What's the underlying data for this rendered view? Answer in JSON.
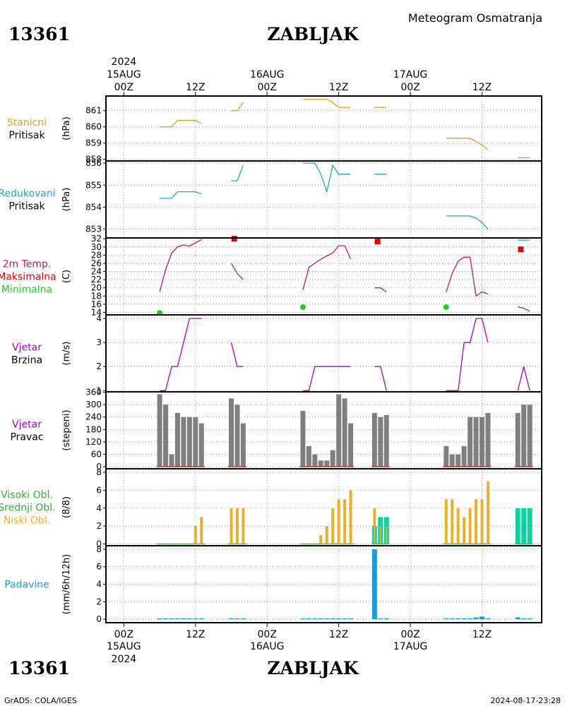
{
  "header": {
    "station_id": "13361",
    "station_name": "ZABLJAK",
    "product": "Meteogram Osmatranja",
    "footer_left": "GrADS: COLA/IGES",
    "footer_right": "2024-08-17-23:28"
  },
  "time_axis": {
    "year": "2024",
    "day_labels": [
      "15AUG",
      "16AUG",
      "17AUG"
    ],
    "hour_labels": [
      "00Z",
      "12Z",
      "00Z",
      "12Z",
      "00Z",
      "12Z"
    ],
    "tick_hours": [
      0,
      12,
      24,
      36,
      48,
      60
    ],
    "range_hours": [
      -3,
      70
    ]
  },
  "colors": {
    "pressure": "#d4a02a",
    "reduced_pressure": "#1aa8c8",
    "temp_line": "#c0186a",
    "tmax": "#e00000",
    "tmin": "#22cc22",
    "wind_speed": "#aa00cc",
    "wind_dir_bar": "#7f7f7f",
    "wind_dir_base": "#e03030",
    "cloud_low": "#e8b030",
    "cloud_mid": "#10d0a0",
    "cloud_high": "#3aaa3a",
    "precip": "#10a0e0"
  },
  "chart_data": [
    {
      "type": "line",
      "id": "station_pressure",
      "label_lines": [
        "Stanicni",
        "Pritisak"
      ],
      "ylabel": "(hPa)",
      "ylim": [
        857.9,
        861.9
      ],
      "yticks": [
        858,
        859,
        860,
        861
      ],
      "series": [
        {
          "x": [
            6,
            8,
            9,
            10,
            11,
            12,
            13
          ],
          "y": [
            860.0,
            860.0,
            860.4,
            860.4,
            860.4,
            860.4,
            860.2
          ]
        },
        {
          "x": [
            18,
            19,
            20
          ],
          "y": [
            861.0,
            861.0,
            861.5
          ]
        },
        {
          "x": [
            30,
            31,
            32,
            33,
            34,
            35,
            36,
            37,
            38
          ],
          "y": [
            861.7,
            861.7,
            861.7,
            861.7,
            861.7,
            861.5,
            861.2,
            861.2,
            861.2
          ]
        },
        {
          "x": [
            42,
            43,
            44
          ],
          "y": [
            861.2,
            861.2,
            861.2
          ]
        },
        {
          "x": [
            54,
            55,
            56,
            57,
            58,
            59,
            60,
            61
          ],
          "y": [
            859.3,
            859.3,
            859.3,
            859.3,
            859.3,
            859.1,
            858.9,
            858.6
          ]
        },
        {
          "x": [
            66,
            67,
            68
          ],
          "y": [
            858.1,
            858.1,
            858.1
          ]
        }
      ]
    },
    {
      "type": "line",
      "id": "reduced_pressure",
      "label_lines": [
        "Redukovani",
        "Pritisak"
      ],
      "ylabel": "(hPa)",
      "ylim": [
        852.6,
        856.1
      ],
      "yticks": [
        853,
        854,
        855,
        856
      ],
      "series": [
        {
          "x": [
            6,
            8,
            9,
            10,
            11,
            12,
            13
          ],
          "y": [
            854.4,
            854.4,
            854.7,
            854.7,
            854.7,
            854.7,
            854.6
          ]
        },
        {
          "x": [
            18,
            19,
            20
          ],
          "y": [
            855.2,
            855.2,
            855.9
          ]
        },
        {
          "x": [
            30,
            31,
            32,
            33,
            34,
            35,
            36,
            37,
            38
          ],
          "y": [
            856.0,
            856.0,
            856.0,
            855.5,
            854.7,
            855.9,
            855.5,
            855.5,
            855.5
          ]
        },
        {
          "x": [
            42,
            43,
            44
          ],
          "y": [
            855.5,
            855.5,
            855.5
          ]
        },
        {
          "x": [
            54,
            55,
            56,
            57,
            58,
            59,
            60,
            61
          ],
          "y": [
            853.6,
            853.6,
            853.6,
            853.6,
            853.6,
            853.5,
            853.3,
            853.0
          ]
        },
        {
          "x": [
            66,
            67,
            68
          ],
          "y": [
            852.5,
            852.5,
            852.5
          ]
        }
      ]
    },
    {
      "type": "line",
      "id": "temperature",
      "label_lines": [
        "2m Temp.",
        "Maksimalna",
        "Minimalna"
      ],
      "ylabel": "(C)",
      "ylim": [
        13.4,
        32.2
      ],
      "yticks": [
        14,
        16,
        18,
        20,
        22,
        24,
        26,
        28,
        30,
        32
      ],
      "series": [
        {
          "x": [
            6,
            7,
            8,
            9,
            10,
            11,
            12,
            13
          ],
          "y": [
            19.0,
            24.5,
            28.5,
            30.0,
            30.5,
            30.2,
            31.0,
            31.8
          ]
        },
        {
          "x": [
            18,
            19,
            20
          ],
          "y": [
            26.0,
            23.5,
            22.0
          ]
        },
        {
          "x": [
            30,
            31,
            32,
            33,
            34,
            35,
            36,
            37,
            38
          ],
          "y": [
            19.5,
            25.0,
            26.0,
            27.0,
            27.8,
            28.5,
            30.3,
            30.3,
            27.0
          ]
        },
        {
          "x": [
            42,
            43,
            44
          ],
          "y": [
            20.0,
            20.0,
            19.0
          ]
        },
        {
          "x": [
            54,
            55,
            56,
            57,
            58,
            59,
            60,
            61
          ],
          "y": [
            19.0,
            23.5,
            26.5,
            27.5,
            27.5,
            18.0,
            19.0,
            18.5
          ]
        },
        {
          "x": [
            66,
            67,
            68
          ],
          "y": [
            15.4,
            15.0,
            14.3
          ]
        }
      ],
      "max_markers": {
        "x": [
          18.5,
          42.5,
          66.5
        ],
        "y": [
          32.0,
          31.3,
          29.4
        ]
      },
      "min_markers": {
        "x": [
          6,
          30,
          54
        ],
        "y": [
          13.9,
          15.3,
          15.3
        ]
      }
    },
    {
      "type": "line",
      "id": "wind_speed",
      "label_lines": [
        "Vjetar",
        "Brzina"
      ],
      "ylabel": "(m/s)",
      "ylim": [
        0.95,
        4.15
      ],
      "yticks": [
        1,
        2,
        3,
        4
      ],
      "series": [
        {
          "x": [
            6,
            7,
            8,
            9,
            10,
            11,
            12,
            13
          ],
          "y": [
            1,
            1,
            2,
            2,
            3,
            4,
            4,
            4
          ]
        },
        {
          "x": [
            18,
            19,
            20
          ],
          "y": [
            3,
            2,
            2
          ]
        },
        {
          "x": [
            30,
            31,
            32,
            33,
            34,
            35,
            36,
            37,
            38
          ],
          "y": [
            1,
            1,
            2,
            2,
            2,
            2,
            2,
            2,
            2
          ]
        },
        {
          "x": [
            42,
            43,
            44
          ],
          "y": [
            2,
            2,
            1
          ]
        },
        {
          "x": [
            54,
            55,
            56,
            57,
            58,
            59,
            60,
            61
          ],
          "y": [
            1,
            1,
            1,
            3,
            3,
            4,
            4,
            3
          ]
        },
        {
          "x": [
            66,
            67,
            68
          ],
          "y": [
            1,
            2,
            1
          ]
        }
      ]
    },
    {
      "type": "bar",
      "id": "wind_direction",
      "label_lines": [
        "Vjetar",
        "Pravac"
      ],
      "ylabel": "(stepeni)",
      "ylim": [
        -10,
        362
      ],
      "yticks": [
        0,
        60,
        120,
        180,
        240,
        300,
        360
      ],
      "x": [
        6,
        7,
        8,
        9,
        10,
        11,
        12,
        13,
        18,
        19,
        20,
        30,
        31,
        32,
        33,
        34,
        35,
        36,
        37,
        38,
        42,
        43,
        44,
        54,
        55,
        56,
        57,
        58,
        59,
        60,
        61,
        66,
        67,
        68
      ],
      "values": [
        350,
        300,
        60,
        260,
        240,
        240,
        240,
        210,
        330,
        300,
        210,
        270,
        100,
        60,
        30,
        30,
        80,
        350,
        330,
        210,
        260,
        240,
        250,
        100,
        60,
        60,
        100,
        240,
        240,
        240,
        260,
        260,
        300,
        300
      ]
    },
    {
      "type": "bar",
      "id": "clouds",
      "label_lines": [
        "Visoki Obl.",
        "Srednji Obl.",
        "Niski Obl."
      ],
      "ylabel": "(8/8)",
      "ylim": [
        -0.2,
        8.4
      ],
      "yticks": [
        0,
        2,
        4,
        6,
        8
      ],
      "x": [
        6,
        7,
        8,
        9,
        10,
        11,
        12,
        13,
        18,
        19,
        20,
        30,
        31,
        32,
        33,
        34,
        35,
        36,
        37,
        38,
        42,
        43,
        44,
        54,
        55,
        56,
        57,
        58,
        59,
        60,
        61,
        66,
        67,
        68
      ],
      "series": [
        {
          "name": "low",
          "values": [
            0,
            0,
            0,
            0,
            0,
            0,
            2,
            3,
            4,
            4,
            4,
            0,
            0,
            0,
            1,
            2,
            4,
            5,
            5,
            6,
            4,
            2,
            2,
            5,
            5,
            4,
            3,
            4,
            5,
            5,
            7,
            0,
            0,
            0
          ]
        },
        {
          "name": "mid",
          "values": [
            0,
            0,
            0,
            0,
            0,
            0,
            0,
            0,
            0,
            0,
            0,
            0,
            0,
            0,
            0,
            0,
            0,
            0,
            0,
            0,
            2,
            3,
            3,
            0,
            0,
            0,
            0,
            0,
            0,
            0,
            0,
            4,
            4,
            4
          ]
        },
        {
          "name": "high",
          "values": [
            0,
            0,
            0,
            0,
            0,
            0,
            0,
            0,
            0,
            0,
            0,
            0,
            0,
            0,
            0,
            0,
            0,
            0,
            0,
            0,
            2,
            0,
            0,
            0,
            0,
            0,
            0,
            0,
            0,
            0,
            0,
            0,
            0,
            0
          ]
        }
      ]
    },
    {
      "type": "bar",
      "id": "precipitation",
      "label_lines": [
        "Padavine"
      ],
      "ylabel": "(mm/6h/12h)",
      "ylim": [
        -0.4,
        8.4
      ],
      "yticks": [
        0,
        2,
        4,
        6,
        8
      ],
      "x": [
        6,
        7,
        8,
        9,
        10,
        11,
        12,
        13,
        18,
        19,
        20,
        30,
        31,
        32,
        33,
        34,
        35,
        36,
        37,
        38,
        42,
        43,
        44,
        54,
        55,
        56,
        57,
        58,
        59,
        60,
        61,
        66,
        67,
        68
      ],
      "values": [
        0.1,
        0.1,
        0.1,
        0.1,
        0.1,
        0.1,
        0.1,
        0.1,
        0.1,
        0.1,
        0.1,
        0.1,
        0.1,
        0.1,
        0.1,
        0.1,
        0.1,
        0.1,
        0.1,
        0.1,
        8.0,
        0.1,
        0.1,
        0.1,
        0.1,
        0.1,
        0.1,
        0.1,
        0.2,
        0.3,
        0.1,
        0.2,
        0.1,
        0.1
      ]
    }
  ]
}
